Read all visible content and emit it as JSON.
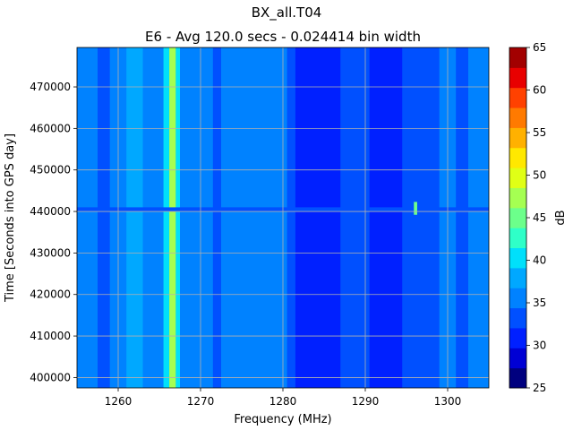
{
  "chart_data": {
    "type": "heatmap",
    "title": "BX_all.T04",
    "subtitle": "E6 - Avg 120.0 secs - 0.024414 bin width",
    "xlabel": "Frequency (MHz)",
    "ylabel": "Time [Seconds into GPS day]",
    "xlim": [
      1255,
      1305
    ],
    "ylim": [
      397500,
      479500
    ],
    "x_ticks": [
      "1260",
      "1270",
      "1280",
      "1290",
      "1300"
    ],
    "y_ticks": [
      "400000",
      "410000",
      "420000",
      "430000",
      "440000",
      "450000",
      "460000",
      "470000"
    ],
    "grid": true,
    "colorbar": {
      "label": "dB",
      "range": [
        25,
        65
      ],
      "ticks": [
        "25",
        "30",
        "35",
        "40",
        "45",
        "50",
        "55",
        "60",
        "65"
      ],
      "levels": [
        "#00007f",
        "#0000d4",
        "#0020ff",
        "#0050ff",
        "#0082ff",
        "#00a8ff",
        "#00e0fb",
        "#2fffc8",
        "#6cff8b",
        "#a5ff52",
        "#e0ff16",
        "#ffe800",
        "#ffb100",
        "#ff7a00",
        "#ff4100",
        "#e80000",
        "#a20000"
      ]
    },
    "background_level_db": 36,
    "bands": [
      {
        "x_start": 1255.0,
        "x_end": 1257.5,
        "level_db": 36
      },
      {
        "x_start": 1257.5,
        "x_end": 1259.0,
        "level_db": 33
      },
      {
        "x_start": 1259.0,
        "x_end": 1261.0,
        "level_db": 36
      },
      {
        "x_start": 1261.0,
        "x_end": 1263.0,
        "level_db": 38
      },
      {
        "x_start": 1263.0,
        "x_end": 1265.5,
        "level_db": 36
      },
      {
        "x_start": 1265.5,
        "x_end": 1266.2,
        "level_db": 41
      },
      {
        "x_start": 1266.2,
        "x_end": 1267.0,
        "level_db": 47
      },
      {
        "x_start": 1267.0,
        "x_end": 1267.5,
        "level_db": 41
      },
      {
        "x_start": 1267.5,
        "x_end": 1268.5,
        "level_db": 36
      },
      {
        "x_start": 1268.5,
        "x_end": 1271.5,
        "level_db": 36
      },
      {
        "x_start": 1271.5,
        "x_end": 1272.5,
        "level_db": 33
      },
      {
        "x_start": 1272.5,
        "x_end": 1280.5,
        "level_db": 36
      },
      {
        "x_start": 1280.5,
        "x_end": 1281.5,
        "level_db": 33
      },
      {
        "x_start": 1281.5,
        "x_end": 1287.0,
        "level_db": 31
      },
      {
        "x_start": 1287.0,
        "x_end": 1290.5,
        "level_db": 33
      },
      {
        "x_start": 1290.5,
        "x_end": 1294.5,
        "level_db": 32
      },
      {
        "x_start": 1294.5,
        "x_end": 1299.0,
        "level_db": 33
      },
      {
        "x_start": 1299.0,
        "x_end": 1301.0,
        "level_db": 36
      },
      {
        "x_start": 1301.0,
        "x_end": 1302.5,
        "level_db": 33
      },
      {
        "x_start": 1302.5,
        "x_end": 1305.0,
        "level_db": 36
      }
    ],
    "events": [
      {
        "x_start": 1255.0,
        "x_end": 1305.0,
        "y_start": 440000,
        "y_end": 441000,
        "level_db": 33
      },
      {
        "x_start": 1295.9,
        "x_end": 1296.3,
        "y_start": 439200,
        "y_end": 442300,
        "level_db": 46
      }
    ]
  }
}
